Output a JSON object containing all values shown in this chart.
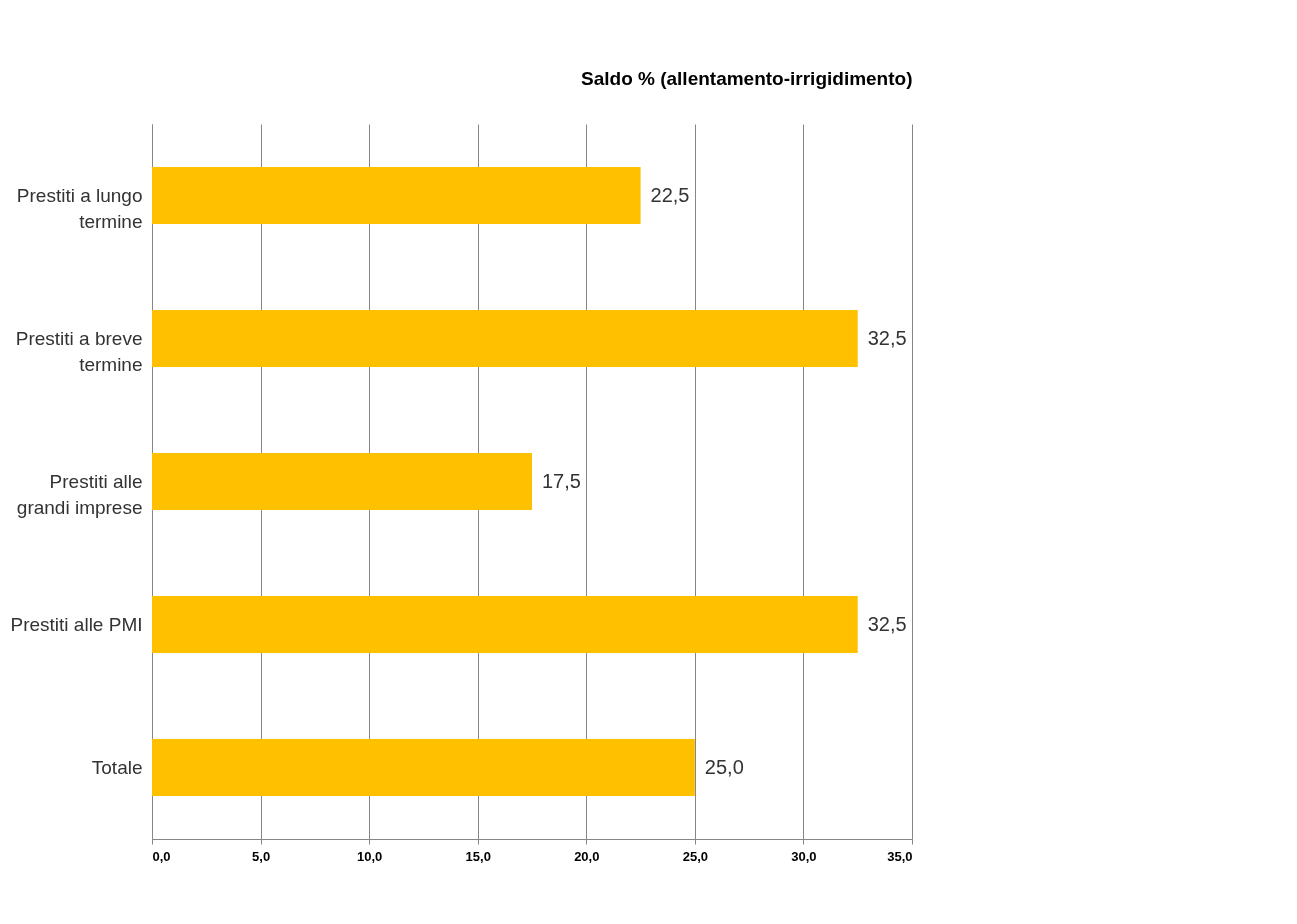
{
  "chart_data": {
    "type": "bar",
    "orientation": "horizontal",
    "title": "Saldo % (allentamento-irrigidimento)",
    "categories": [
      "Prestiti a lungo termine",
      "Prestiti a breve termine",
      "Prestiti alle grandi imprese",
      "Prestiti alle PMI",
      "Totale"
    ],
    "values": [
      22.5,
      32.5,
      17.5,
      32.5,
      25.0
    ],
    "value_labels": [
      "22,5",
      "32,5",
      "17,5",
      "32,5",
      "25,0"
    ],
    "color": "#ffc000",
    "xlim": [
      0,
      35
    ],
    "xticks": [
      {
        "value": 0,
        "label": "0,0"
      },
      {
        "value": 5,
        "label": "5,0"
      },
      {
        "value": 10,
        "label": "10,0"
      },
      {
        "value": 15,
        "label": "15,0"
      },
      {
        "value": 20,
        "label": "20,0"
      },
      {
        "value": 25,
        "label": "25,0"
      },
      {
        "value": 30,
        "label": "30,0"
      },
      {
        "value": 35,
        "label": "35,0"
      }
    ],
    "grid": "x"
  }
}
